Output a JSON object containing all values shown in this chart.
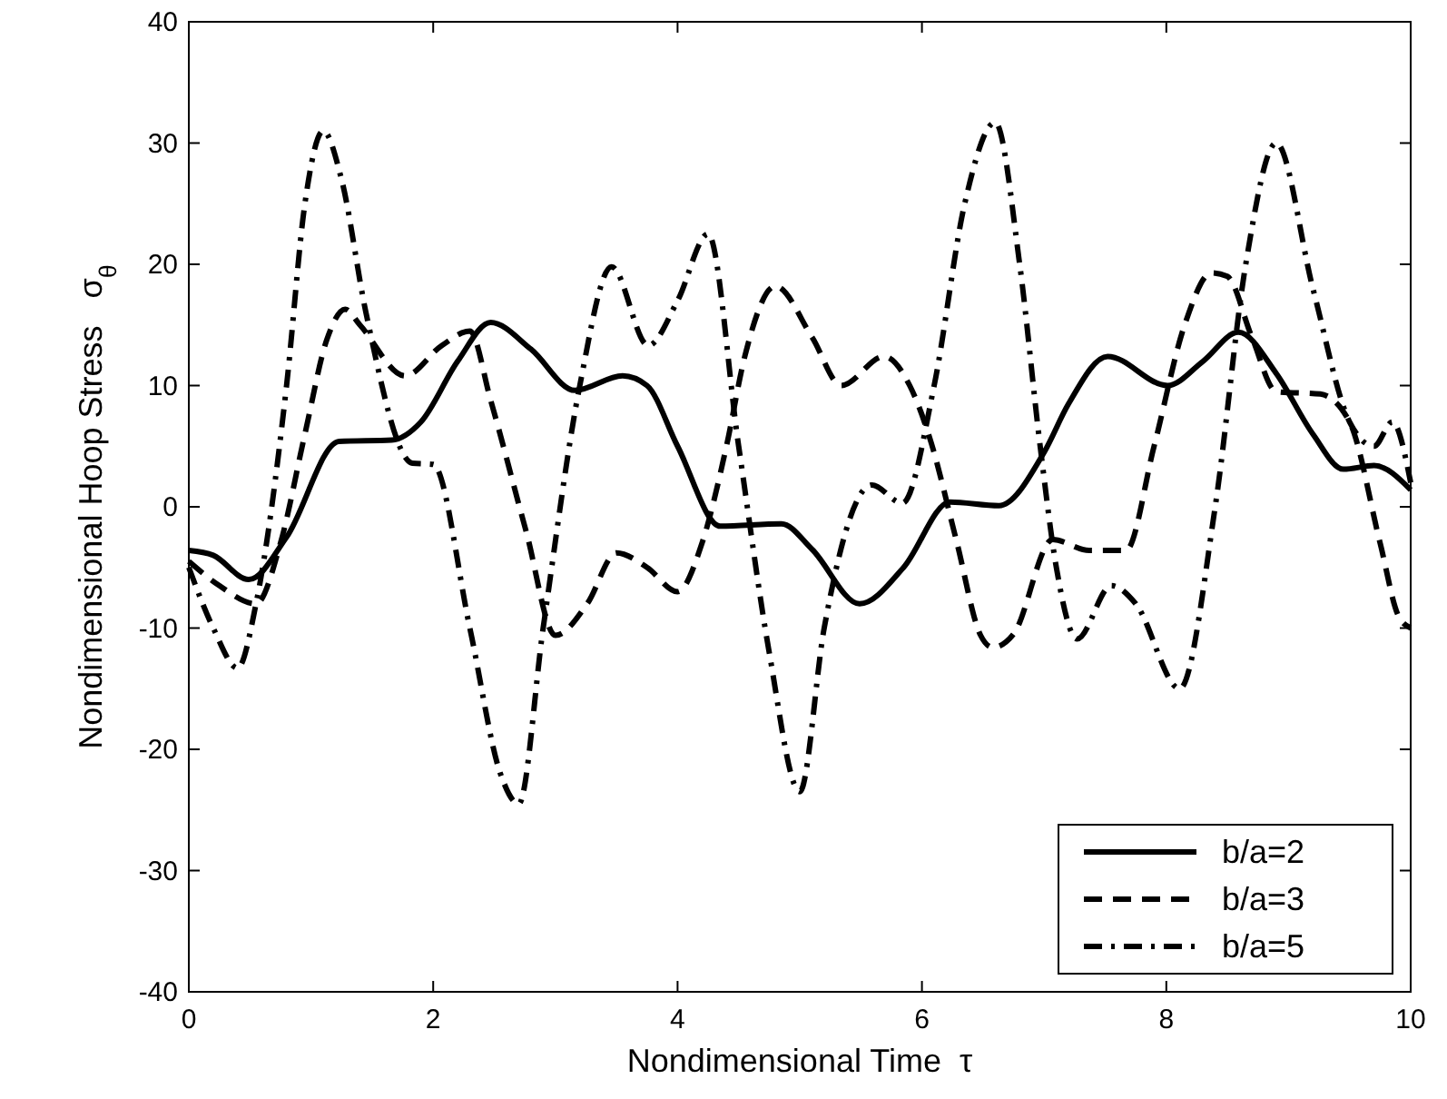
{
  "chart_data": {
    "type": "line",
    "xlabel": "Nondimensional Time  τ",
    "ylabel": "Nondimensional Hoop Stress   σ$_{θ}$",
    "xlim": [
      0,
      10
    ],
    "ylim": [
      -40,
      40
    ],
    "xticks": [
      0,
      2,
      4,
      6,
      8,
      10
    ],
    "yticks": [
      -40,
      -30,
      -20,
      -10,
      0,
      10,
      20,
      30,
      40
    ],
    "grid": false,
    "legend": "bottom right",
    "marker": "none",
    "series": [
      {
        "name": "b/a=2",
        "color": "#000000",
        "line_style": "solid",
        "x": [
          0,
          0.2,
          0.49,
          0.8,
          1.23,
          1.66,
          1.9,
          2.2,
          2.47,
          2.8,
          3.16,
          3.55,
          3.75,
          4.0,
          4.35,
          4.85,
          5.1,
          5.49,
          5.85,
          6.23,
          6.63,
          7.0,
          7.2,
          7.52,
          8.01,
          8.3,
          8.59,
          8.9,
          9.2,
          9.45,
          9.7,
          10
        ],
        "values": [
          -3.6,
          -4,
          -6,
          -2.5,
          5.4,
          5.5,
          7,
          12,
          15.2,
          13,
          9.6,
          10.8,
          10,
          5,
          -1.6,
          -1.4,
          -3.5,
          -8,
          -5,
          0.4,
          0.1,
          4.5,
          8.5,
          12.4,
          10,
          12,
          14.4,
          11,
          6,
          3.1,
          3.4,
          1.4
        ]
      },
      {
        "name": "b/a=3",
        "color": "#000000",
        "line_style": "dashed",
        "x": [
          0,
          0.25,
          0.55,
          0.75,
          0.95,
          1.13,
          1.28,
          1.4,
          1.77,
          2.07,
          2.3,
          2.47,
          2.76,
          3.0,
          3.26,
          3.5,
          3.75,
          4.0,
          4.2,
          4.4,
          4.55,
          4.8,
          5.1,
          5.34,
          5.69,
          5.9,
          6.06,
          6.28,
          6.48,
          6.58,
          6.75,
          7.07,
          7.37,
          7.67,
          7.9,
          8.15,
          8.37,
          8.5,
          8.7,
          8.9,
          9.26,
          9.5,
          9.75,
          9.9,
          10
        ],
        "values": [
          -4.5,
          -6.5,
          -8,
          -3,
          6,
          13.8,
          16.3,
          15,
          10.8,
          13.3,
          14.5,
          8.8,
          -2,
          -10.6,
          -8,
          -3.8,
          -5,
          -7,
          -3,
          5,
          12.4,
          18.2,
          14,
          10,
          12.4,
          10,
          5.8,
          -2.7,
          -10.6,
          -11.6,
          -10.5,
          -2.7,
          -3.6,
          -3.6,
          5,
          15,
          19.3,
          19,
          14,
          9.5,
          9.3,
          7,
          -3,
          -9,
          -10
        ]
      },
      {
        "name": "b/a=5",
        "color": "#000000",
        "line_style": "dashdot",
        "x": [
          0,
          0.2,
          0.4,
          0.55,
          0.8,
          0.95,
          1.1,
          1.25,
          1.45,
          1.83,
          2.0,
          2.3,
          2.55,
          2.7,
          2.9,
          3.2,
          3.46,
          3.76,
          4.0,
          4.25,
          4.5,
          4.75,
          5.0,
          5.2,
          5.59,
          5.84,
          6.1,
          6.35,
          6.6,
          6.8,
          6.97,
          7.1,
          7.27,
          7.55,
          7.75,
          8.11,
          8.4,
          8.65,
          8.9,
          9.2,
          9.5,
          9.7,
          9.85,
          10
        ],
        "values": [
          -5,
          -10,
          -13.3,
          -8,
          10,
          25,
          31,
          27,
          16,
          3.6,
          3.5,
          -10,
          -22,
          -24.5,
          -10,
          10,
          19.8,
          13.3,
          17,
          22.5,
          5,
          -12,
          -23.5,
          -10,
          1.8,
          0.3,
          10,
          25,
          31.7,
          20,
          4.8,
          -5,
          -10.9,
          -6.5,
          -8,
          -15,
          0,
          20,
          30,
          18,
          7,
          5,
          7,
          2
        ]
      }
    ]
  }
}
